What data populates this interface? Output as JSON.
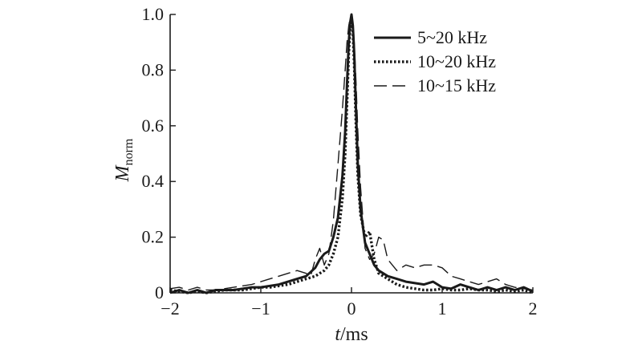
{
  "chart_data": {
    "type": "line",
    "xlabel": {
      "italic": "t",
      "rest": "/ms"
    },
    "ylabel": {
      "main": "M",
      "sub": "norm"
    },
    "xlim": [
      -2,
      2
    ],
    "ylim": [
      0,
      1.0
    ],
    "xticks": [
      -2,
      -1,
      0,
      1,
      2
    ],
    "yticks": [
      0,
      0.2,
      0.4,
      0.6,
      0.8,
      1.0
    ],
    "xtick_labels": [
      "−2",
      "−1",
      "0",
      "1",
      "2"
    ],
    "ytick_labels": [
      "0",
      "0.2",
      "0.4",
      "0.6",
      "0.8",
      "1.0"
    ],
    "grid": false,
    "legend_position": "top-right",
    "series": [
      {
        "name": "5~20 kHz",
        "style": "solid",
        "x": [
          -2.0,
          -1.9,
          -1.8,
          -1.7,
          -1.6,
          -1.5,
          -1.4,
          -1.3,
          -1.2,
          -1.1,
          -1.0,
          -0.9,
          -0.8,
          -0.7,
          -0.6,
          -0.5,
          -0.4,
          -0.35,
          -0.3,
          -0.25,
          -0.2,
          -0.15,
          -0.1,
          -0.07,
          -0.05,
          -0.03,
          -0.015,
          0.0,
          0.015,
          0.03,
          0.05,
          0.07,
          0.1,
          0.15,
          0.2,
          0.25,
          0.3,
          0.4,
          0.5,
          0.6,
          0.7,
          0.8,
          0.9,
          1.0,
          1.1,
          1.2,
          1.3,
          1.4,
          1.5,
          1.6,
          1.7,
          1.8,
          1.9,
          2.0
        ],
        "y": [
          0.0,
          0.01,
          0.0,
          0.01,
          0.0,
          0.01,
          0.01,
          0.01,
          0.015,
          0.02,
          0.02,
          0.025,
          0.03,
          0.04,
          0.05,
          0.06,
          0.09,
          0.12,
          0.14,
          0.15,
          0.2,
          0.27,
          0.42,
          0.58,
          0.75,
          0.9,
          0.97,
          1.0,
          0.96,
          0.86,
          0.66,
          0.46,
          0.3,
          0.18,
          0.14,
          0.1,
          0.08,
          0.06,
          0.05,
          0.04,
          0.035,
          0.03,
          0.04,
          0.02,
          0.015,
          0.03,
          0.02,
          0.01,
          0.02,
          0.01,
          0.02,
          0.01,
          0.02,
          0.005
        ]
      },
      {
        "name": "10~20 kHz",
        "style": "dotted",
        "x": [
          -2.0,
          -1.9,
          -1.8,
          -1.7,
          -1.6,
          -1.5,
          -1.4,
          -1.3,
          -1.2,
          -1.1,
          -1.0,
          -0.9,
          -0.8,
          -0.7,
          -0.6,
          -0.5,
          -0.4,
          -0.35,
          -0.3,
          -0.25,
          -0.2,
          -0.15,
          -0.1,
          -0.07,
          -0.05,
          -0.03,
          -0.015,
          0.0,
          0.015,
          0.03,
          0.05,
          0.07,
          0.1,
          0.15,
          0.2,
          0.25,
          0.3,
          0.4,
          0.5,
          0.6,
          0.7,
          0.8,
          0.9,
          1.0,
          1.1,
          1.2,
          1.3,
          1.4,
          1.5,
          1.6,
          1.7,
          1.8,
          1.9,
          2.0
        ],
        "y": [
          0.01,
          0.005,
          0.0,
          0.005,
          0.0,
          0.005,
          0.01,
          0.01,
          0.01,
          0.015,
          0.02,
          0.02,
          0.025,
          0.03,
          0.04,
          0.05,
          0.06,
          0.07,
          0.08,
          0.1,
          0.14,
          0.2,
          0.34,
          0.5,
          0.68,
          0.86,
          0.95,
          0.985,
          0.94,
          0.82,
          0.6,
          0.42,
          0.28,
          0.2,
          0.22,
          0.12,
          0.07,
          0.05,
          0.03,
          0.02,
          0.015,
          0.01,
          0.01,
          0.015,
          0.01,
          0.01,
          0.015,
          0.01,
          0.01,
          0.005,
          0.01,
          0.005,
          0.01,
          0.0
        ]
      },
      {
        "name": "10~15 kHz",
        "style": "dashed",
        "x": [
          -2.0,
          -1.9,
          -1.8,
          -1.7,
          -1.6,
          -1.5,
          -1.4,
          -1.3,
          -1.2,
          -1.1,
          -1.0,
          -0.9,
          -0.8,
          -0.7,
          -0.6,
          -0.5,
          -0.45,
          -0.4,
          -0.35,
          -0.3,
          -0.25,
          -0.2,
          -0.15,
          -0.1,
          -0.07,
          -0.05,
          -0.03,
          -0.015,
          0.0,
          0.015,
          0.03,
          0.05,
          0.07,
          0.1,
          0.15,
          0.2,
          0.25,
          0.3,
          0.35,
          0.4,
          0.5,
          0.6,
          0.7,
          0.8,
          0.9,
          1.0,
          1.1,
          1.2,
          1.3,
          1.4,
          1.5,
          1.6,
          1.7,
          1.8,
          1.9,
          2.0
        ],
        "y": [
          0.015,
          0.02,
          0.01,
          0.02,
          0.01,
          0.01,
          0.015,
          0.02,
          0.025,
          0.03,
          0.04,
          0.05,
          0.06,
          0.07,
          0.08,
          0.07,
          0.06,
          0.12,
          0.16,
          0.1,
          0.14,
          0.26,
          0.46,
          0.66,
          0.8,
          0.9,
          0.96,
          0.985,
          0.99,
          0.97,
          0.9,
          0.76,
          0.58,
          0.38,
          0.16,
          0.12,
          0.14,
          0.2,
          0.19,
          0.12,
          0.08,
          0.1,
          0.09,
          0.1,
          0.1,
          0.09,
          0.06,
          0.05,
          0.04,
          0.03,
          0.04,
          0.05,
          0.03,
          0.02,
          0.015,
          0.01
        ]
      }
    ]
  }
}
